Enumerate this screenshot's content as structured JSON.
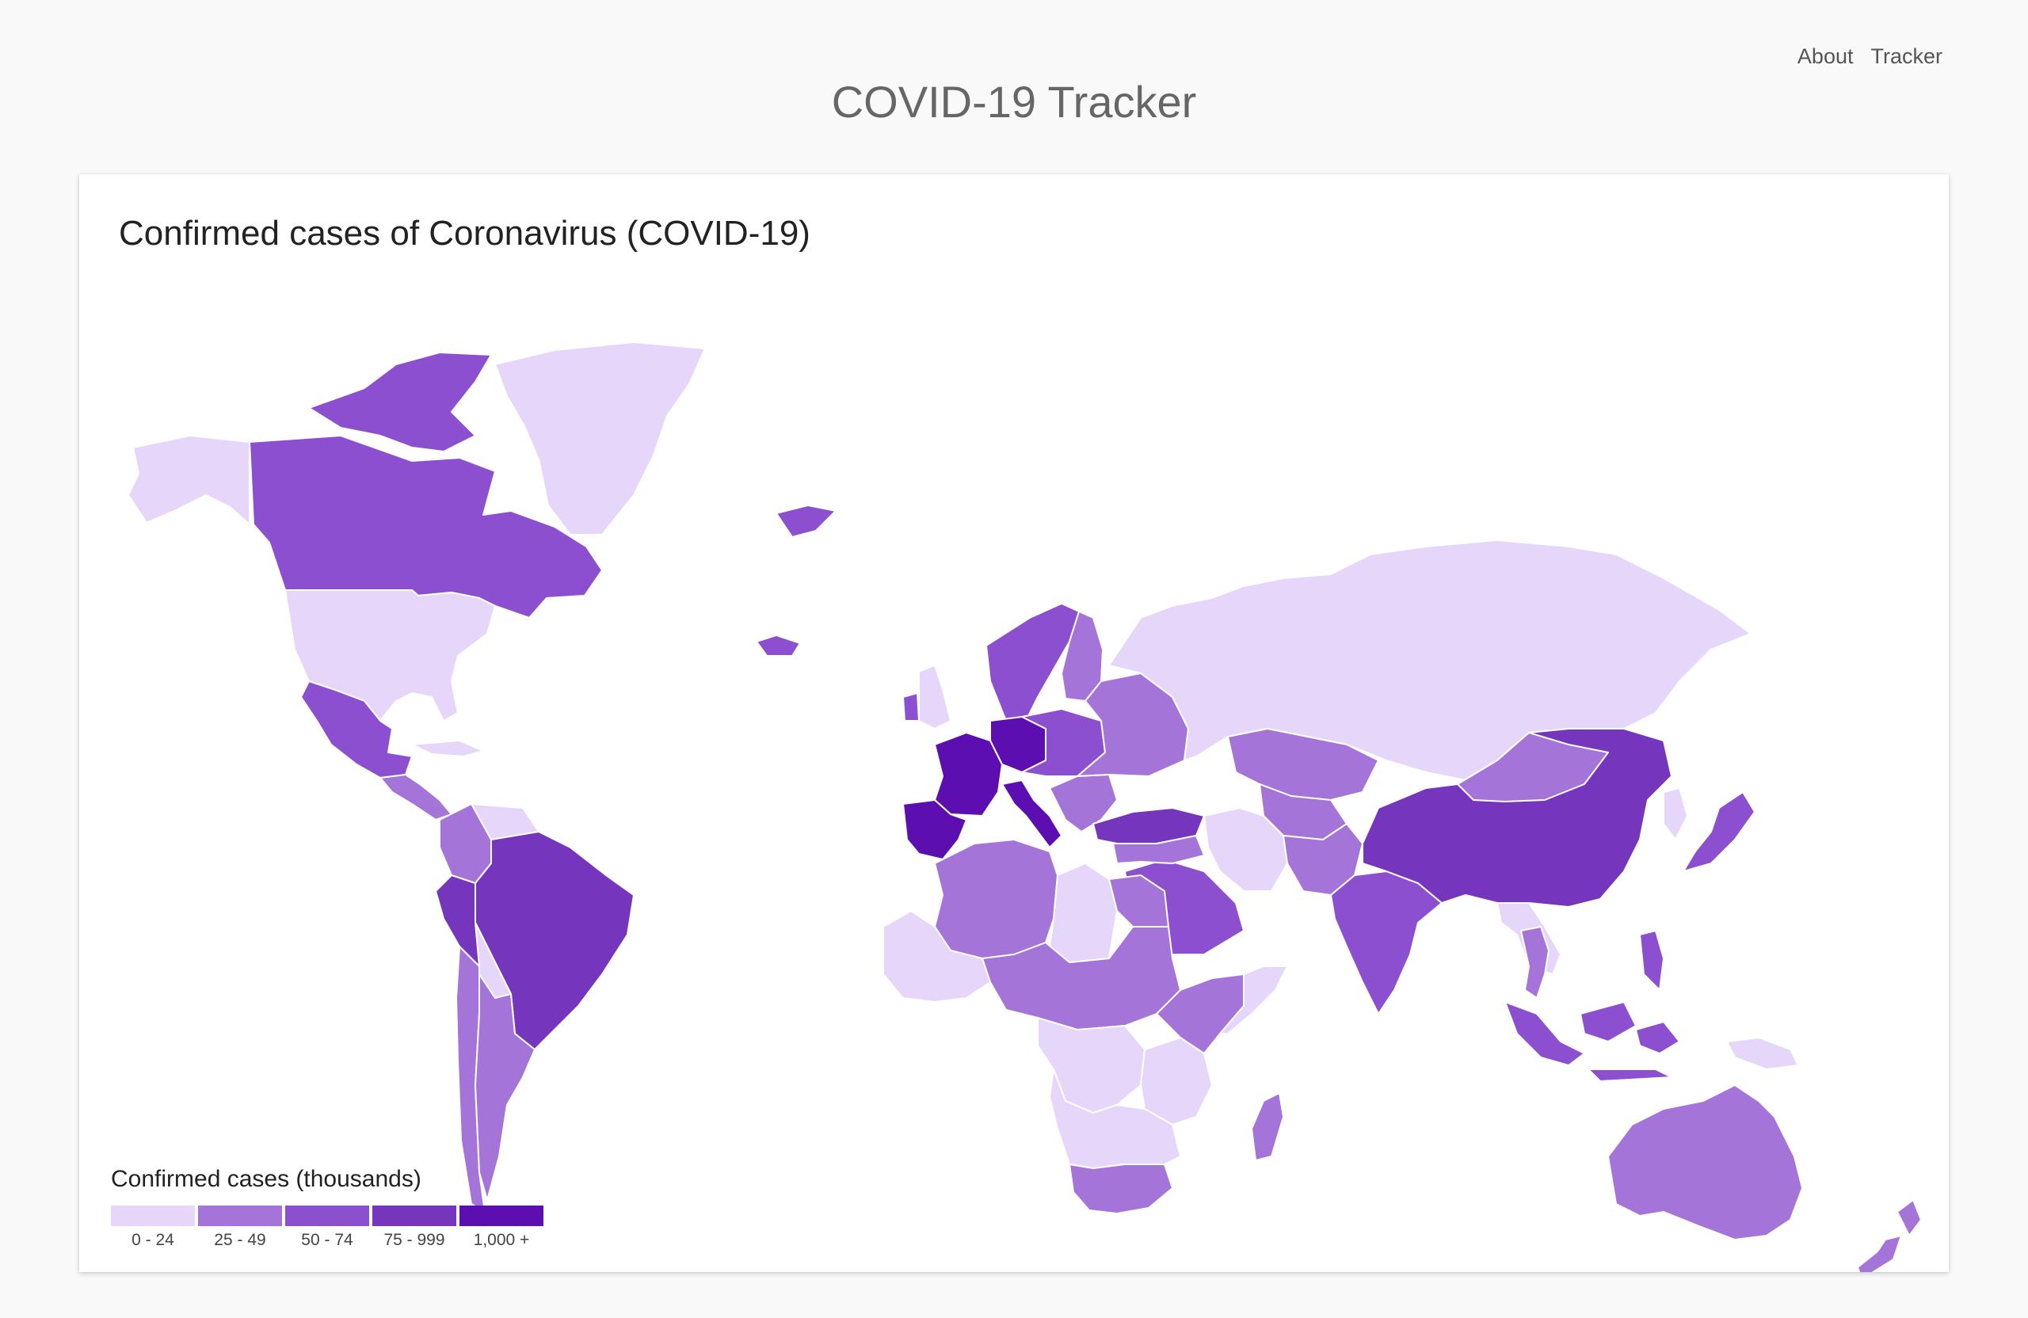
{
  "nav": {
    "links": [
      {
        "label": "About"
      },
      {
        "label": "Tracker"
      }
    ]
  },
  "site_title": "COVID-19 Tracker",
  "card": {
    "title": "Confirmed cases of Coronavirus (COVID-19)"
  },
  "legend": {
    "title": "Confirmed cases (thousands)",
    "bins": [
      {
        "label": "0 - 24",
        "color": "#e6d6f9"
      },
      {
        "label": "25 - 49",
        "color": "#a474d8"
      },
      {
        "label": "50 - 74",
        "color": "#8b4fcf"
      },
      {
        "label": "75 - 999",
        "color": "#7535bd"
      },
      {
        "label": "1,000 +",
        "color": "#5c0eb0"
      }
    ]
  },
  "map": {
    "ocean_color": "#ffffff",
    "border_color": "#ffffff",
    "no_data_color": "#e8e8e8",
    "regions": [
      {
        "name": "alaska",
        "bin": 0
      },
      {
        "name": "canada",
        "bin": 2
      },
      {
        "name": "canada-arctic-islands",
        "bin": 2
      },
      {
        "name": "greenland",
        "bin": 0
      },
      {
        "name": "usa",
        "bin": 0
      },
      {
        "name": "mexico",
        "bin": 2
      },
      {
        "name": "central-america",
        "bin": 1
      },
      {
        "name": "cuba",
        "bin": 0
      },
      {
        "name": "colombia",
        "bin": 1
      },
      {
        "name": "venezuela",
        "bin": 0
      },
      {
        "name": "brazil",
        "bin": 3
      },
      {
        "name": "peru",
        "bin": 3
      },
      {
        "name": "bolivia",
        "bin": 0
      },
      {
        "name": "chile",
        "bin": 1
      },
      {
        "name": "argentina",
        "bin": 1
      },
      {
        "name": "iceland",
        "bin": 2
      },
      {
        "name": "svalbard",
        "bin": 2
      },
      {
        "name": "uk",
        "bin": 0
      },
      {
        "name": "ireland",
        "bin": 2
      },
      {
        "name": "scandinavia",
        "bin": 2
      },
      {
        "name": "finland",
        "bin": 1
      },
      {
        "name": "france",
        "bin": 4
      },
      {
        "name": "iberia",
        "bin": 4
      },
      {
        "name": "germany",
        "bin": 4
      },
      {
        "name": "italy",
        "bin": 4
      },
      {
        "name": "central-europe",
        "bin": 2
      },
      {
        "name": "eastern-europe",
        "bin": 1
      },
      {
        "name": "balkans",
        "bin": 1
      },
      {
        "name": "turkey",
        "bin": 3
      },
      {
        "name": "russia",
        "bin": 0
      },
      {
        "name": "kazakhstan",
        "bin": 1
      },
      {
        "name": "central-asia",
        "bin": 1
      },
      {
        "name": "iran",
        "bin": 0
      },
      {
        "name": "saudi-arabia",
        "bin": 2
      },
      {
        "name": "middle-east",
        "bin": 1
      },
      {
        "name": "pakistan-afghanistan",
        "bin": 1
      },
      {
        "name": "india",
        "bin": 2
      },
      {
        "name": "china",
        "bin": 3
      },
      {
        "name": "mongolia",
        "bin": 1
      },
      {
        "name": "korea",
        "bin": 0
      },
      {
        "name": "japan",
        "bin": 2
      },
      {
        "name": "southeast-asia",
        "bin": 0
      },
      {
        "name": "thailand",
        "bin": 1
      },
      {
        "name": "indonesia",
        "bin": 2
      },
      {
        "name": "philippines",
        "bin": 2
      },
      {
        "name": "papua-new-guinea",
        "bin": 0
      },
      {
        "name": "australia",
        "bin": 1
      },
      {
        "name": "new-zealand",
        "bin": 1
      },
      {
        "name": "north-africa",
        "bin": 1
      },
      {
        "name": "libya",
        "bin": 0
      },
      {
        "name": "egypt",
        "bin": 1
      },
      {
        "name": "west-africa",
        "bin": 0
      },
      {
        "name": "sahel",
        "bin": 1
      },
      {
        "name": "central-africa",
        "bin": 0
      },
      {
        "name": "east-africa",
        "bin": 0
      },
      {
        "name": "horn-of-africa",
        "bin": 1
      },
      {
        "name": "somalia",
        "bin": 0
      },
      {
        "name": "southern-africa",
        "bin": 0
      },
      {
        "name": "south-africa",
        "bin": 1
      },
      {
        "name": "madagascar",
        "bin": 1
      }
    ]
  }
}
